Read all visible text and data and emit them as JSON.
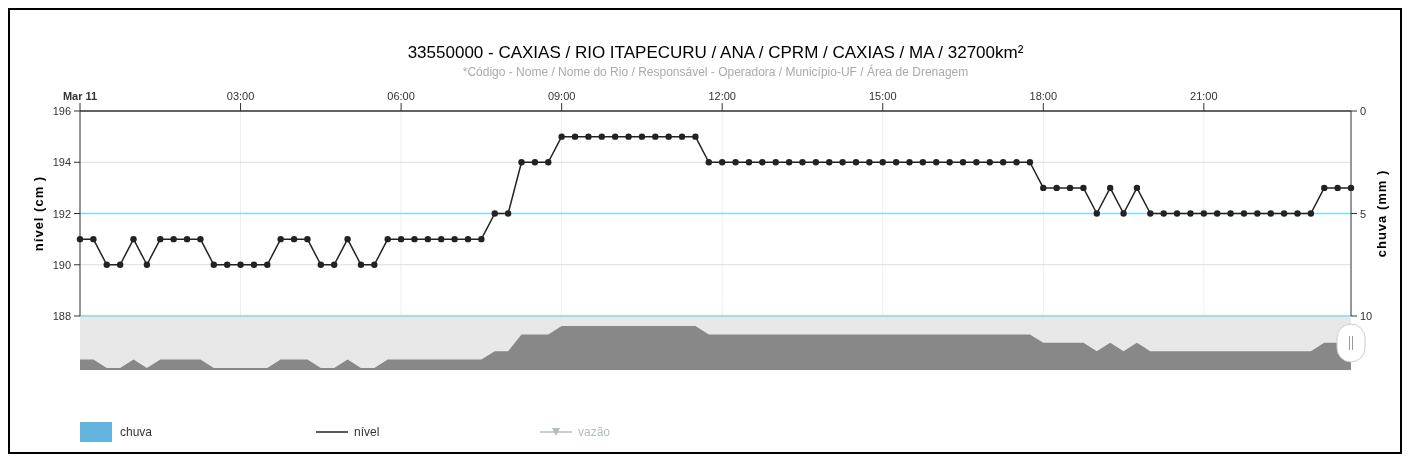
{
  "chart_data": {
    "type": "line",
    "title": "33550000 - CAXIAS / RIO ITAPECURU / ANA / CPRM / CAXIAS / MA / 32700km²",
    "subtitle": "*Código - Nome / Nome do Rio / Responsável - Operadora / Município-UF / Área de Drenagem",
    "ylabel": "nível (cm )",
    "y2label": "chuva (mm )",
    "x": [
      0,
      0.25,
      0.5,
      0.75,
      1,
      1.25,
      1.5,
      1.75,
      2,
      2.25,
      2.5,
      2.75,
      3,
      3.25,
      3.5,
      3.75,
      4,
      4.25,
      4.5,
      4.75,
      5,
      5.25,
      5.5,
      5.75,
      6,
      6.25,
      6.5,
      6.75,
      7,
      7.25,
      7.5,
      7.75,
      8,
      8.25,
      8.5,
      8.75,
      9,
      9.25,
      9.5,
      9.75,
      10,
      10.25,
      10.5,
      10.75,
      11,
      11.25,
      11.5,
      11.75,
      12,
      12.25,
      12.5,
      12.75,
      13,
      13.25,
      13.5,
      13.75,
      14,
      14.25,
      14.5,
      14.75,
      15,
      15.25,
      15.5,
      15.75,
      16,
      16.25,
      16.5,
      16.75,
      17,
      17.25,
      17.5,
      17.75,
      18,
      18.25,
      18.5,
      18.75,
      19,
      19.25,
      19.5,
      19.75,
      20,
      20.25,
      20.5,
      20.75,
      21,
      21.25,
      21.5,
      21.75,
      22,
      22.25,
      22.5,
      22.75,
      23,
      23.25,
      23.5,
      23.75
    ],
    "series": [
      {
        "name": "chuva",
        "type": "bar",
        "color": "#63b5de",
        "values": [
          null,
          null,
          null,
          null,
          null,
          null,
          null,
          null,
          null,
          null,
          null,
          null,
          null,
          null,
          null,
          null,
          null,
          null,
          null,
          null,
          null,
          null,
          null,
          null,
          null,
          null,
          null,
          null,
          null,
          null,
          null,
          null,
          null,
          null,
          null,
          null,
          null,
          null,
          null,
          null,
          null,
          null,
          null,
          null,
          null,
          null,
          null,
          null,
          null,
          null,
          null,
          null,
          null,
          null,
          null,
          null,
          null,
          null,
          null,
          null,
          null,
          null,
          null,
          null,
          null,
          null,
          null,
          null,
          null,
          null,
          null,
          null,
          null,
          null,
          null,
          null,
          null,
          null,
          null,
          null,
          null,
          null,
          null,
          null,
          null,
          null,
          null,
          null,
          null,
          null,
          null,
          null,
          null,
          null,
          null,
          null
        ]
      },
      {
        "name": "nível",
        "color": "#222222",
        "marker": "circle",
        "values": [
          191,
          191,
          190,
          190,
          191,
          190,
          191,
          191,
          191,
          191,
          190,
          190,
          190,
          190,
          190,
          191,
          191,
          191,
          190,
          190,
          191,
          190,
          190,
          191,
          191,
          191,
          191,
          191,
          191,
          191,
          191,
          192,
          192,
          194,
          194,
          194,
          195,
          195,
          195,
          195,
          195,
          195,
          195,
          195,
          195,
          195,
          195,
          194,
          194,
          194,
          194,
          194,
          194,
          194,
          194,
          194,
          194,
          194,
          194,
          194,
          194,
          194,
          194,
          194,
          194,
          194,
          194,
          194,
          194,
          194,
          194,
          194,
          193,
          193,
          193,
          193,
          192,
          193,
          192,
          193,
          192,
          192,
          192,
          192,
          192,
          192,
          192,
          192,
          192,
          192,
          192,
          192,
          192,
          193,
          193,
          193
        ]
      },
      {
        "name": "vazão",
        "type": "line",
        "color": "#b3bcbc",
        "marker": "triangle",
        "values": [
          null,
          null,
          null,
          null,
          null,
          null,
          null,
          null,
          null,
          null,
          null,
          null,
          null,
          null,
          null,
          null,
          null,
          null,
          null,
          null,
          null,
          null,
          null,
          null,
          null,
          null,
          null,
          null,
          null,
          null,
          null,
          null,
          null,
          null,
          null,
          null,
          null,
          null,
          null,
          null,
          null,
          null,
          null,
          null,
          null,
          null,
          null,
          null,
          null,
          null,
          null,
          null,
          null,
          null,
          null,
          null,
          null,
          null,
          null,
          null,
          null,
          null,
          null,
          null,
          null,
          null,
          null,
          null,
          null,
          null,
          null,
          null,
          null,
          null,
          null,
          null,
          null,
          null,
          null,
          null,
          null,
          null,
          null,
          null,
          null,
          null,
          null,
          null,
          null,
          null,
          null,
          null,
          null,
          null,
          null,
          null
        ]
      }
    ],
    "xlim": [
      0,
      23.75
    ],
    "xticks": [
      {
        "value": 0,
        "label": "Mar 11"
      },
      {
        "value": 3,
        "label": "03:00"
      },
      {
        "value": 6,
        "label": "06:00"
      },
      {
        "value": 9,
        "label": "09:00"
      },
      {
        "value": 12,
        "label": "12:00"
      },
      {
        "value": 15,
        "label": "15:00"
      },
      {
        "value": 18,
        "label": "18:00"
      },
      {
        "value": 21,
        "label": "21:00"
      }
    ],
    "ylim": [
      188,
      196
    ],
    "yticks": [
      188,
      190,
      192,
      194,
      196
    ],
    "y2lim": [
      10,
      0
    ],
    "y2ticks": [
      0,
      5,
      10
    ],
    "ref_lines": [
      {
        "axis": "y",
        "value": 192,
        "color": "#7fe0e8"
      },
      {
        "axis": "y",
        "value": 188,
        "color": "#7fe0e8"
      }
    ],
    "grid": true,
    "legend": "bottom",
    "line_style": "solid"
  }
}
